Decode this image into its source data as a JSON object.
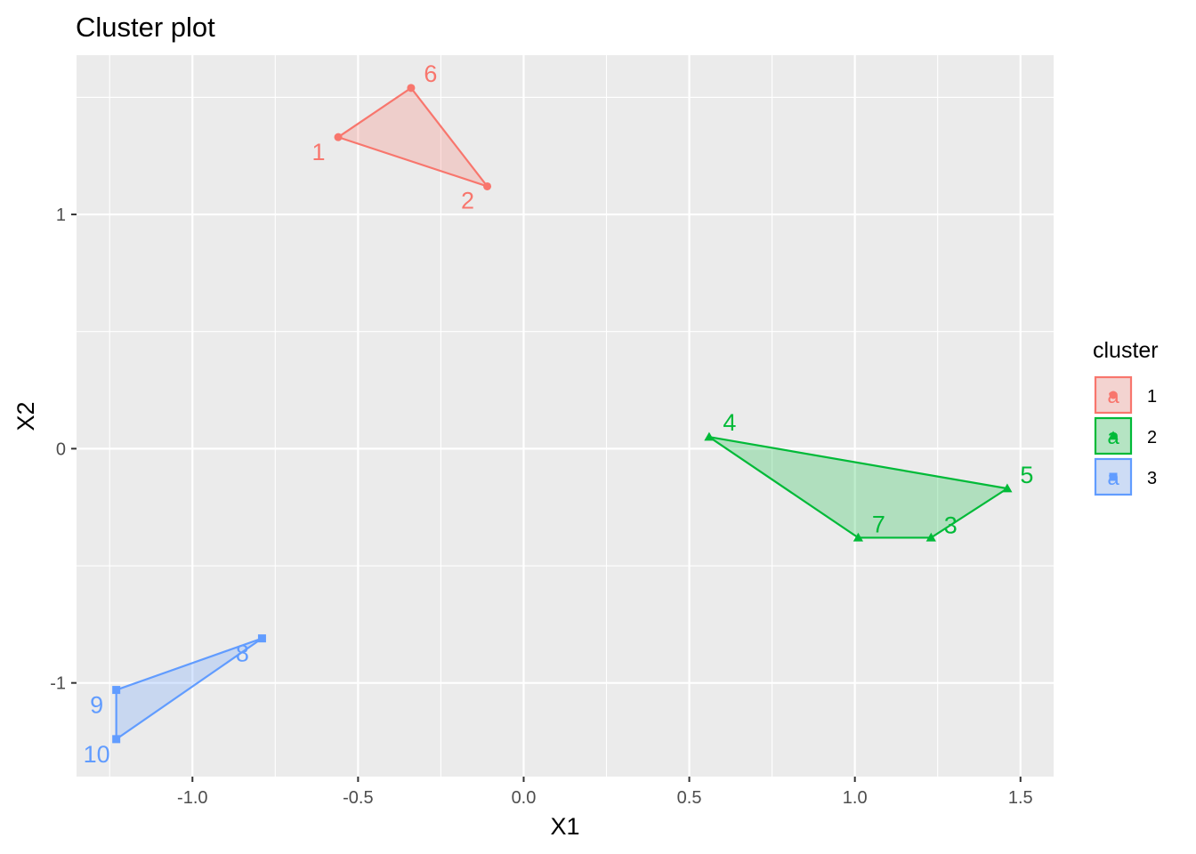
{
  "chart_data": {
    "type": "scatter",
    "title": "Cluster plot",
    "xlabel": "X1",
    "ylabel": "X2",
    "xlim": [
      -1.35,
      1.6
    ],
    "ylim": [
      -1.4,
      1.68
    ],
    "x_ticks": [
      -1.0,
      -0.5,
      0.0,
      0.5,
      1.0,
      1.5
    ],
    "x_tick_labels": [
      "-1.0",
      "-0.5",
      "0.0",
      "0.5",
      "1.0",
      "1.5"
    ],
    "y_ticks": [
      -1,
      0,
      1
    ],
    "y_tick_labels": [
      "-1",
      "0",
      "1"
    ],
    "x_minor_grid": [
      -1.25,
      -0.75,
      -0.25,
      0.25,
      0.75,
      1.25
    ],
    "y_minor_grid": [
      -0.5,
      0.5,
      1.5
    ],
    "grid": true,
    "legend": {
      "title": "cluster",
      "placement": "right",
      "entries": [
        {
          "label": "1",
          "glyph": "a",
          "color": "#F8766D",
          "shape": "circle"
        },
        {
          "label": "2",
          "glyph": "a",
          "color": "#00BA38",
          "shape": "triangle"
        },
        {
          "label": "3",
          "glyph": "a",
          "color": "#619CFF",
          "shape": "square"
        }
      ]
    },
    "series": [
      {
        "name": "1",
        "color": "#F8766D",
        "shape": "circle",
        "points": [
          {
            "label": "1",
            "x": -0.56,
            "y": 1.33
          },
          {
            "label": "2",
            "x": -0.11,
            "y": 1.12
          },
          {
            "label": "6",
            "x": -0.34,
            "y": 1.54
          }
        ],
        "hull": [
          "1",
          "6",
          "2"
        ]
      },
      {
        "name": "2",
        "color": "#00BA38",
        "shape": "triangle",
        "points": [
          {
            "label": "3",
            "x": 1.23,
            "y": -0.38
          },
          {
            "label": "4",
            "x": 0.56,
            "y": 0.05
          },
          {
            "label": "5",
            "x": 1.46,
            "y": -0.17
          },
          {
            "label": "7",
            "x": 1.01,
            "y": -0.38
          }
        ],
        "hull": [
          "4",
          "5",
          "3",
          "7"
        ]
      },
      {
        "name": "3",
        "color": "#619CFF",
        "shape": "square",
        "points": [
          {
            "label": "8",
            "x": -0.79,
            "y": -0.81
          },
          {
            "label": "9",
            "x": -1.23,
            "y": -1.03
          },
          {
            "label": "10",
            "x": -1.23,
            "y": -1.24
          }
        ],
        "hull": [
          "8",
          "9",
          "10"
        ]
      }
    ]
  }
}
